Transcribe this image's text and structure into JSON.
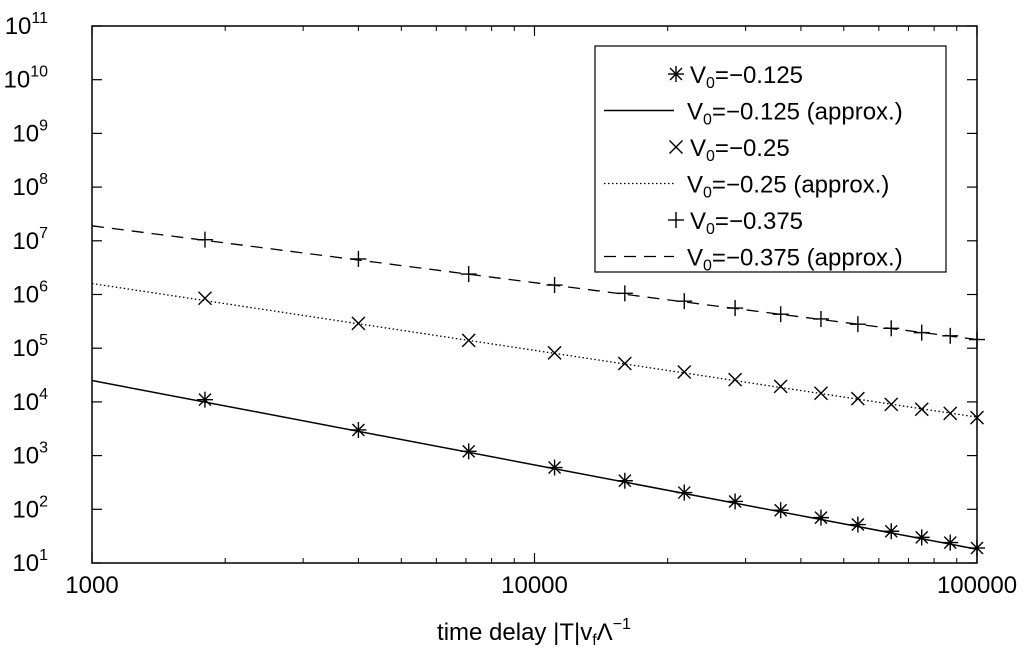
{
  "chart_data": {
    "type": "line",
    "title": "",
    "xlabel": {
      "text_pre": "time delay |T|v",
      "sub": "f",
      "lambda": "Λ",
      "sup": "−1"
    },
    "ylabel": "",
    "x_scale": "log",
    "y_scale": "log",
    "xlim": [
      1000,
      100000
    ],
    "ylim": [
      10,
      100000000000
    ],
    "grid": false,
    "legend_position": "top-right",
    "x_ticks": [
      {
        "value": 1000,
        "label": "1000"
      },
      {
        "value": 10000,
        "label": "10000"
      },
      {
        "value": 100000,
        "label": "100000"
      }
    ],
    "y_ticks": [
      {
        "value": 10,
        "base": "10",
        "exp": "1"
      },
      {
        "value": 100,
        "base": "10",
        "exp": "2"
      },
      {
        "value": 1000,
        "base": "10",
        "exp": "3"
      },
      {
        "value": 10000,
        "base": "10",
        "exp": "4"
      },
      {
        "value": 100000,
        "base": "10",
        "exp": "5"
      },
      {
        "value": 1000000,
        "base": "10",
        "exp": "6"
      },
      {
        "value": 10000000,
        "base": "10",
        "exp": "7"
      },
      {
        "value": 100000000,
        "base": "10",
        "exp": "8"
      },
      {
        "value": 1000000000,
        "base": "10",
        "exp": "9"
      },
      {
        "value": 10000000000,
        "base": "10",
        "exp": "10"
      },
      {
        "value": 100000000000,
        "base": "10",
        "exp": "11"
      }
    ],
    "series": [
      {
        "name": {
          "pre": "V",
          "sub": "0",
          "post": "=−0.125"
        },
        "style": "markers",
        "marker": "asterisk",
        "x": [
          1800,
          4000,
          7100,
          11100,
          16000,
          21800,
          28400,
          36000,
          44400,
          53800,
          64000,
          75000,
          87000,
          100000
        ],
        "y": [
          11000,
          3000,
          1200,
          600,
          340,
          205,
          140,
          96,
          70,
          52,
          39,
          30,
          24,
          19
        ]
      },
      {
        "name": {
          "pre": "V",
          "sub": "0",
          "post": "=−0.125 (approx.)"
        },
        "style": "solid",
        "x": [
          1000,
          100000
        ],
        "y": [
          25000,
          18
        ]
      },
      {
        "name": {
          "pre": "V",
          "sub": "0",
          "post": "=−0.25"
        },
        "style": "markers",
        "marker": "cross",
        "x": [
          1800,
          4000,
          7100,
          11100,
          16000,
          21800,
          28400,
          36000,
          44400,
          53800,
          64000,
          75000,
          87000,
          100000
        ],
        "y": [
          850000,
          290000,
          140000,
          82000,
          52000,
          36000,
          26000,
          19500,
          14500,
          11500,
          9000,
          7300,
          6100,
          5100
        ]
      },
      {
        "name": {
          "pre": "V",
          "sub": "0",
          "post": "=−0.25 (approx.)"
        },
        "style": "dotted",
        "x": [
          1000,
          100000
        ],
        "y": [
          1600000,
          5200
        ]
      },
      {
        "name": {
          "pre": "V",
          "sub": "0",
          "post": "=−0.375"
        },
        "style": "markers",
        "marker": "plus",
        "x": [
          1800,
          4000,
          7100,
          11100,
          16000,
          21800,
          28400,
          36000,
          44400,
          53800,
          64000,
          75000,
          87000,
          100000
        ],
        "y": [
          10500000,
          4600000,
          2400000,
          1500000,
          1050000,
          750000,
          560000,
          430000,
          350000,
          280000,
          235000,
          195000,
          170000,
          145000
        ]
      },
      {
        "name": {
          "pre": "V",
          "sub": "0",
          "post": "=−0.375 (approx.)"
        },
        "style": "dashed",
        "x": [
          1000,
          100000
        ],
        "y": [
          19000000,
          145000
        ]
      }
    ]
  }
}
